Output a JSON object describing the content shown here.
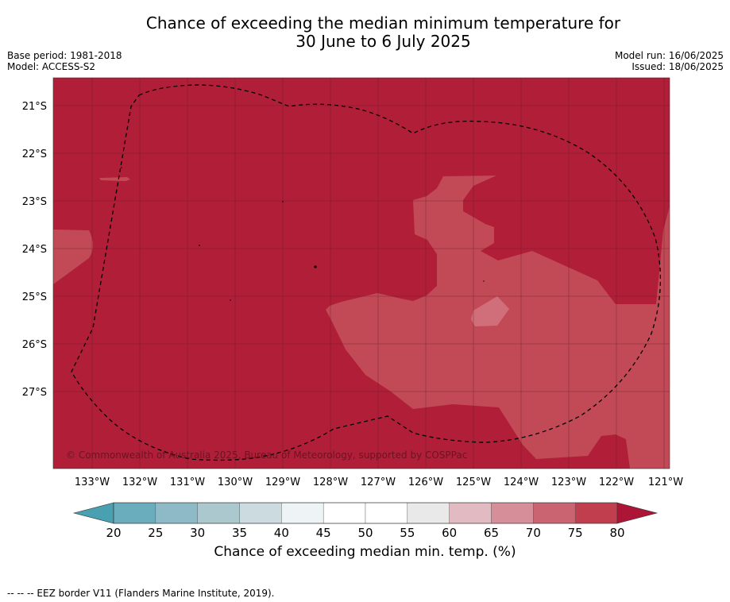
{
  "title_line1": "Chance of exceeding the median minimum temperature for",
  "title_line2": "30 June to 6 July 2025",
  "left_meta": {
    "base_period": "Base period: 1981-2018",
    "model": "Model: ACCESS-S2"
  },
  "right_meta": {
    "model_run": "Model run: 16/06/2025",
    "issued": "Issued: 18/06/2025"
  },
  "map": {
    "lat_labels": [
      "21°S",
      "22°S",
      "23°S",
      "24°S",
      "25°S",
      "26°S",
      "27°S"
    ],
    "lon_labels": [
      "133°W",
      "132°W",
      "131°W",
      "130°W",
      "129°W",
      "128°W",
      "127°W",
      "126°W",
      "125°W",
      "124°W",
      "123°W",
      "122°W",
      "121°W"
    ],
    "copyright": "© Commonwealth of Australia 2025, Bureau of Meteorology, supported by COSPPac",
    "main_color": "#b11e38",
    "light_color": "#c24a56",
    "lighter_color": "#d06f79"
  },
  "colorbar": {
    "ticks": [
      "20",
      "25",
      "30",
      "35",
      "40",
      "45",
      "50",
      "55",
      "60",
      "65",
      "70",
      "75",
      "80"
    ],
    "colors": [
      "#6aadbd",
      "#8dbac6",
      "#abc8ce",
      "#ccdbdf",
      "#eef3f5",
      "#ffffff",
      "#ffffff",
      "#e9e9ea",
      "#e2bac1",
      "#d68f98",
      "#c96470",
      "#c13e4f"
    ],
    "under_color": "#48a0b0",
    "over_color": "#ac1535",
    "label": "Chance of exceeding median min. temp. (%)"
  },
  "footer": "--  --  -- EEZ border V11 (Flanders Marine Institute, 2019)."
}
